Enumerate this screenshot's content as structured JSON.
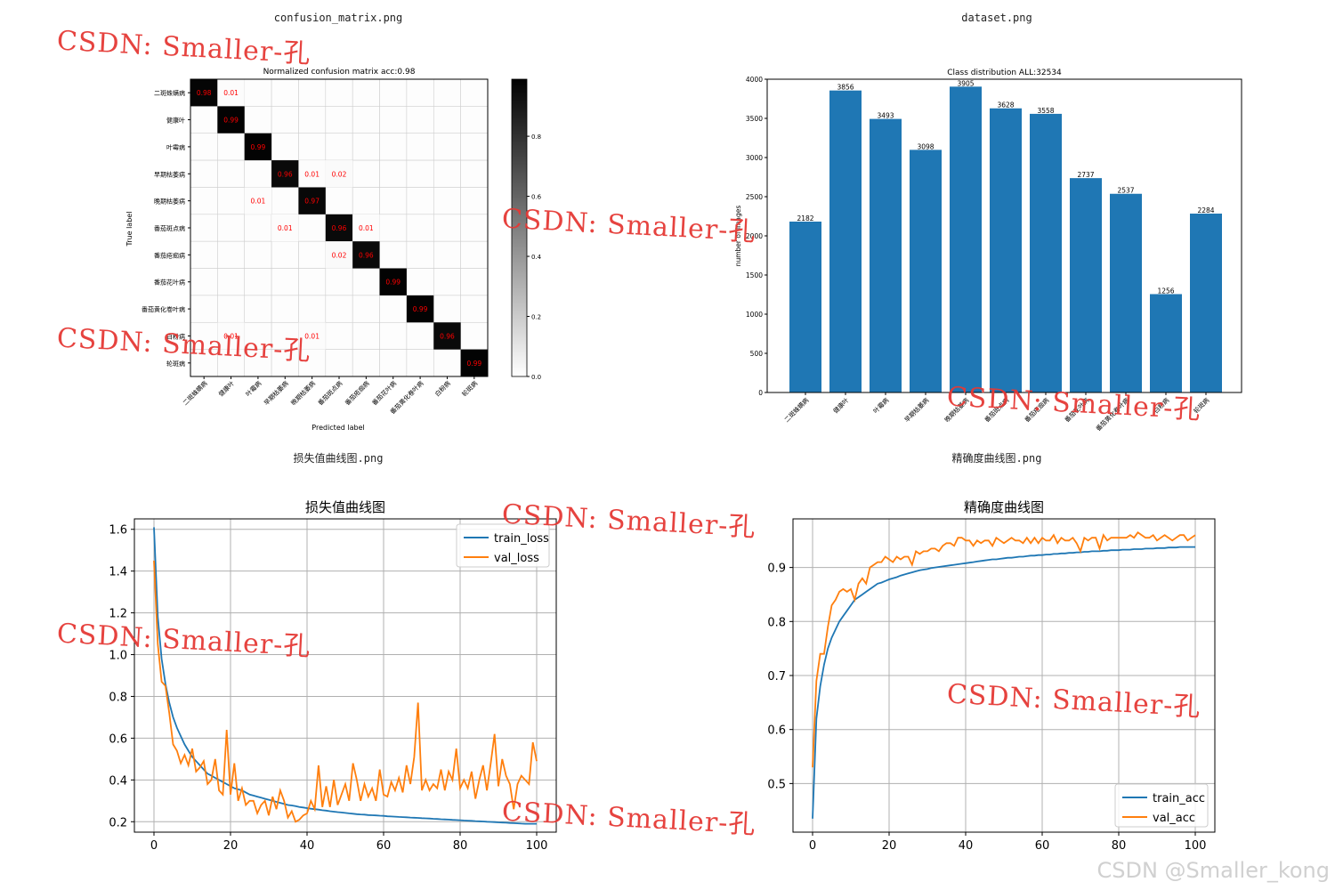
{
  "captions": {
    "confusion": "confusion_matrix.png",
    "dataset": "dataset.png",
    "loss": "损失值曲线图.png",
    "acc": "精确度曲线图.png"
  },
  "watermark": "CSDN: Smaller-孔",
  "footer_watermark": "CSDN @Smaller_kong",
  "colors": {
    "blue": "#1f77b4",
    "orange": "#ff7f0e",
    "annot": "#ff0000"
  },
  "chart_data": [
    {
      "type": "heatmap",
      "title": "Normalized confusion matrix acc:0.98",
      "xlabel": "Predicted label",
      "ylabel": "True label",
      "labels": [
        "二斑蛛螨病",
        "健康叶",
        "叶霉病",
        "早期枯萎病",
        "晚期枯萎病",
        "番茄斑点病",
        "番茄疮痂病",
        "番茄花叶病",
        "番茄黄化卷叶病",
        "白粉病",
        "轮斑病"
      ],
      "colorbar_ticks": [
        "0.0",
        "0.2",
        "0.4",
        "0.6",
        "0.8"
      ],
      "cells": [
        {
          "r": 0,
          "c": 0,
          "v": 0.98,
          "t": "0.98"
        },
        {
          "r": 0,
          "c": 1,
          "v": 0.01,
          "t": "0.01"
        },
        {
          "r": 1,
          "c": 1,
          "v": 0.99,
          "t": "0.99"
        },
        {
          "r": 2,
          "c": 2,
          "v": 0.99,
          "t": "0.99"
        },
        {
          "r": 3,
          "c": 3,
          "v": 0.96,
          "t": "0.96"
        },
        {
          "r": 3,
          "c": 4,
          "v": 0.01,
          "t": "0.01"
        },
        {
          "r": 3,
          "c": 5,
          "v": 0.02,
          "t": "0.02"
        },
        {
          "r": 4,
          "c": 2,
          "v": 0.01,
          "t": "0.01"
        },
        {
          "r": 4,
          "c": 4,
          "v": 0.97,
          "t": "0.97"
        },
        {
          "r": 5,
          "c": 3,
          "v": 0.01,
          "t": "0.01"
        },
        {
          "r": 5,
          "c": 5,
          "v": 0.96,
          "t": "0.96"
        },
        {
          "r": 5,
          "c": 6,
          "v": 0.01,
          "t": "0.01"
        },
        {
          "r": 6,
          "c": 5,
          "v": 0.02,
          "t": "0.02"
        },
        {
          "r": 6,
          "c": 6,
          "v": 0.96,
          "t": "0.96"
        },
        {
          "r": 7,
          "c": 7,
          "v": 0.99,
          "t": "0.99"
        },
        {
          "r": 8,
          "c": 8,
          "v": 0.99,
          "t": "0.99"
        },
        {
          "r": 9,
          "c": 1,
          "v": 0.01,
          "t": "0.01"
        },
        {
          "r": 9,
          "c": 4,
          "v": 0.01,
          "t": "0.01"
        },
        {
          "r": 9,
          "c": 9,
          "v": 0.96,
          "t": "0.96"
        },
        {
          "r": 10,
          "c": 10,
          "v": 0.99,
          "t": "0.99"
        }
      ]
    },
    {
      "type": "bar",
      "title": "Class distribution ALL:32534",
      "ylabel": "number of images",
      "categories": [
        "二斑蛛螨病",
        "健康叶",
        "叶霉病",
        "早期枯萎病",
        "晚期枯萎病",
        "番茄斑点病",
        "番茄疮痂病",
        "番茄花叶病",
        "番茄黄化卷叶病",
        "白粉病",
        "轮斑病"
      ],
      "values": [
        2182,
        3856,
        3493,
        3098,
        3905,
        3628,
        3558,
        2737,
        2537,
        1256,
        2284
      ],
      "ylim": [
        0,
        4000
      ],
      "yticks": [
        0,
        500,
        1000,
        1500,
        2000,
        2500,
        3000,
        3500,
        4000
      ]
    },
    {
      "type": "line",
      "title": "损失值曲线图",
      "xlim": [
        0,
        100
      ],
      "ylim": [
        0.15,
        1.65
      ],
      "xticks": [
        0,
        20,
        40,
        60,
        80,
        100
      ],
      "yticks": [
        "0.2",
        "0.4",
        "0.6",
        "0.8",
        "1.0",
        "1.2",
        "1.4",
        "1.6"
      ],
      "legend": "top-right",
      "series": [
        {
          "name": "train_loss",
          "values": [
            1.61,
            1.18,
            0.98,
            0.86,
            0.77,
            0.7,
            0.65,
            0.61,
            0.57,
            0.54,
            0.51,
            0.49,
            0.47,
            0.45,
            0.43,
            0.42,
            0.41,
            0.4,
            0.39,
            0.38,
            0.37,
            0.36,
            0.355,
            0.35,
            0.34,
            0.33,
            0.325,
            0.32,
            0.315,
            0.31,
            0.305,
            0.3,
            0.295,
            0.29,
            0.285,
            0.28,
            0.278,
            0.275,
            0.27,
            0.268,
            0.265,
            0.262,
            0.26,
            0.258,
            0.255,
            0.253,
            0.25,
            0.248,
            0.246,
            0.244,
            0.242,
            0.24,
            0.238,
            0.236,
            0.235,
            0.234,
            0.232,
            0.231,
            0.23,
            0.229,
            0.228,
            0.226,
            0.225,
            0.224,
            0.223,
            0.222,
            0.221,
            0.22,
            0.219,
            0.218,
            0.217,
            0.216,
            0.215,
            0.214,
            0.213,
            0.212,
            0.211,
            0.21,
            0.209,
            0.208,
            0.207,
            0.206,
            0.205,
            0.204,
            0.203,
            0.202,
            0.201,
            0.2,
            0.199,
            0.198,
            0.197,
            0.196,
            0.195,
            0.194,
            0.193,
            0.192,
            0.191,
            0.19,
            0.19,
            0.19,
            0.19
          ]
        },
        {
          "name": "val_loss",
          "values": [
            1.45,
            1.05,
            0.87,
            0.85,
            0.72,
            0.57,
            0.54,
            0.48,
            0.52,
            0.47,
            0.55,
            0.44,
            0.46,
            0.49,
            0.38,
            0.4,
            0.5,
            0.35,
            0.33,
            0.64,
            0.33,
            0.48,
            0.3,
            0.36,
            0.28,
            0.3,
            0.3,
            0.24,
            0.28,
            0.3,
            0.23,
            0.32,
            0.26,
            0.35,
            0.3,
            0.22,
            0.25,
            0.2,
            0.21,
            0.23,
            0.24,
            0.3,
            0.26,
            0.47,
            0.27,
            0.37,
            0.27,
            0.4,
            0.28,
            0.33,
            0.38,
            0.3,
            0.48,
            0.4,
            0.3,
            0.38,
            0.32,
            0.36,
            0.3,
            0.45,
            0.33,
            0.32,
            0.39,
            0.35,
            0.41,
            0.34,
            0.47,
            0.38,
            0.51,
            0.77,
            0.35,
            0.4,
            0.35,
            0.38,
            0.36,
            0.45,
            0.35,
            0.44,
            0.4,
            0.55,
            0.36,
            0.4,
            0.36,
            0.44,
            0.31,
            0.4,
            0.47,
            0.35,
            0.48,
            0.62,
            0.37,
            0.5,
            0.42,
            0.38,
            0.26,
            0.38,
            0.42,
            0.4,
            0.38,
            0.58,
            0.49
          ]
        }
      ]
    },
    {
      "type": "line",
      "title": "精确度曲线图",
      "xlim": [
        0,
        100
      ],
      "ylim": [
        0.41,
        0.99
      ],
      "xticks": [
        0,
        20,
        40,
        60,
        80,
        100
      ],
      "yticks": [
        "0.5",
        "0.6",
        "0.7",
        "0.8",
        "0.9"
      ],
      "legend": "bottom-right",
      "series": [
        {
          "name": "train_acc",
          "values": [
            0.435,
            0.62,
            0.68,
            0.72,
            0.75,
            0.77,
            0.785,
            0.8,
            0.81,
            0.82,
            0.83,
            0.84,
            0.845,
            0.85,
            0.855,
            0.86,
            0.865,
            0.87,
            0.872,
            0.875,
            0.878,
            0.88,
            0.882,
            0.885,
            0.887,
            0.889,
            0.891,
            0.893,
            0.895,
            0.896,
            0.897,
            0.899,
            0.9,
            0.901,
            0.902,
            0.903,
            0.904,
            0.905,
            0.906,
            0.907,
            0.908,
            0.909,
            0.91,
            0.911,
            0.912,
            0.913,
            0.914,
            0.915,
            0.915,
            0.916,
            0.917,
            0.918,
            0.918,
            0.919,
            0.92,
            0.92,
            0.921,
            0.922,
            0.922,
            0.923,
            0.923,
            0.924,
            0.924,
            0.925,
            0.925,
            0.926,
            0.926,
            0.927,
            0.927,
            0.928,
            0.928,
            0.929,
            0.929,
            0.93,
            0.93,
            0.93,
            0.931,
            0.931,
            0.932,
            0.932,
            0.932,
            0.933,
            0.933,
            0.933,
            0.934,
            0.934,
            0.934,
            0.935,
            0.935,
            0.935,
            0.936,
            0.936,
            0.936,
            0.937,
            0.937,
            0.937,
            0.938,
            0.938,
            0.938,
            0.938,
            0.938
          ]
        },
        {
          "name": "val_acc",
          "values": [
            0.53,
            0.69,
            0.74,
            0.74,
            0.79,
            0.83,
            0.84,
            0.855,
            0.86,
            0.855,
            0.86,
            0.84,
            0.87,
            0.88,
            0.87,
            0.9,
            0.905,
            0.91,
            0.91,
            0.92,
            0.915,
            0.91,
            0.92,
            0.915,
            0.92,
            0.92,
            0.905,
            0.93,
            0.925,
            0.93,
            0.93,
            0.935,
            0.935,
            0.93,
            0.94,
            0.945,
            0.945,
            0.94,
            0.955,
            0.955,
            0.95,
            0.95,
            0.94,
            0.95,
            0.945,
            0.95,
            0.95,
            0.94,
            0.955,
            0.95,
            0.945,
            0.95,
            0.955,
            0.95,
            0.95,
            0.945,
            0.955,
            0.945,
            0.955,
            0.945,
            0.955,
            0.95,
            0.95,
            0.96,
            0.945,
            0.955,
            0.95,
            0.95,
            0.955,
            0.945,
            0.93,
            0.955,
            0.95,
            0.955,
            0.955,
            0.935,
            0.96,
            0.95,
            0.955,
            0.955,
            0.955,
            0.955,
            0.955,
            0.96,
            0.955,
            0.965,
            0.96,
            0.955,
            0.955,
            0.96,
            0.95,
            0.955,
            0.96,
            0.955,
            0.95,
            0.955,
            0.96,
            0.96,
            0.95,
            0.955,
            0.96
          ]
        }
      ]
    }
  ]
}
